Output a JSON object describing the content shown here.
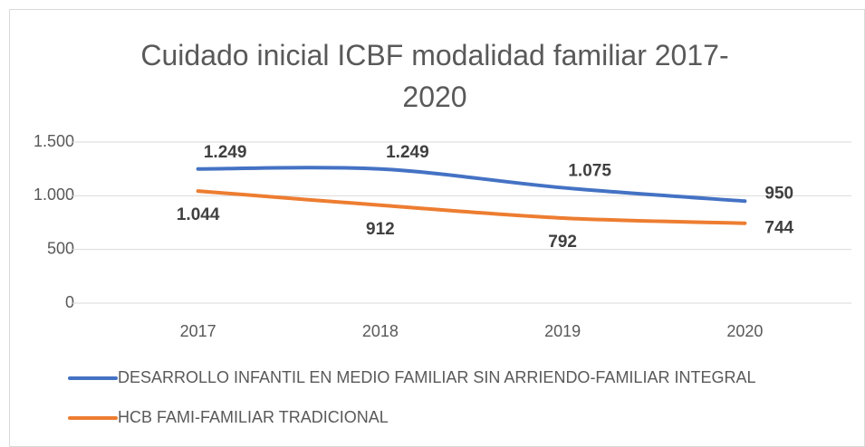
{
  "chart_data": {
    "type": "line",
    "title": "Cuidado inicial ICBF modalidad familiar 2017-2020",
    "categories": [
      "2017",
      "2018",
      "2019",
      "2020"
    ],
    "series": [
      {
        "name": "DESARROLLO INFANTIL EN MEDIO FAMILIAR SIN ARRIENDO-FAMILIAR INTEGRAL",
        "color": "#4472c4",
        "values": [
          1249,
          1249,
          1075,
          950
        ],
        "value_labels": [
          "1.249",
          "1.249",
          "1.075",
          "950"
        ]
      },
      {
        "name": "HCB FAMI-FAMILIAR TRADICIONAL",
        "color": "#ed7d31",
        "values": [
          1044,
          912,
          792,
          744
        ],
        "value_labels": [
          "1.044",
          "912",
          "792",
          "744"
        ]
      }
    ],
    "ylim": [
      0,
      1500
    ],
    "yticks": [
      0,
      500,
      {
        "value": 1000,
        "label": "1.000"
      },
      {
        "value": 1500,
        "label": "1.500"
      }
    ],
    "grid": true
  }
}
